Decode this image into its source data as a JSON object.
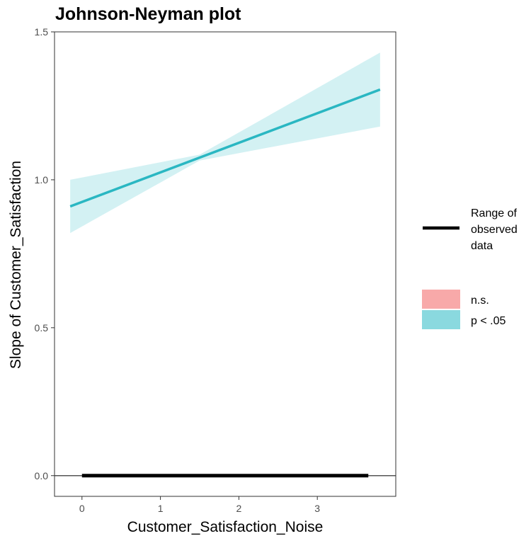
{
  "chart_data": {
    "type": "line",
    "title": "Johnson-Neyman plot",
    "xlabel": "Customer_Satisfaction_Noise",
    "ylabel": "Slope of Customer_Satisfaction",
    "xlim": [
      -0.35,
      4.0
    ],
    "ylim": [
      -0.07,
      1.5
    ],
    "x_ticks": [
      0,
      1,
      2,
      3
    ],
    "x_tick_labels": [
      "0",
      "1",
      "2",
      "3"
    ],
    "y_ticks": [
      0.0,
      0.5,
      1.0,
      1.5
    ],
    "y_tick_labels": [
      "0.0",
      "0.5",
      "1.0",
      "1.5"
    ],
    "grid": false,
    "zero_line": 0,
    "slope_line": {
      "x": [
        -0.15,
        3.8
      ],
      "y": [
        0.91,
        1.305
      ],
      "color": "#2ab7c2"
    },
    "confidence_band": {
      "x": [
        -0.15,
        1.5,
        3.8
      ],
      "lower": [
        0.82,
        1.065,
        1.18
      ],
      "upper": [
        1.0,
        1.085,
        1.43
      ],
      "color": "#9ddfe5"
    },
    "observed_range": {
      "x": [
        0,
        3.65
      ],
      "y": 0,
      "color": "#000000"
    },
    "legend": {
      "placement": "right",
      "range_label": [
        "Range of",
        "observed",
        "data"
      ],
      "significance": [
        {
          "label": "n.s.",
          "color": "#f8a9a9"
        },
        {
          "label": "p < .05",
          "color": "#8ad9df"
        }
      ]
    }
  }
}
